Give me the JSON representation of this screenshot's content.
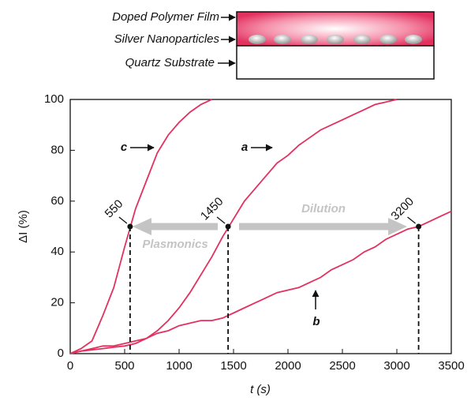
{
  "schematic": {
    "labels": [
      "Doped Polymer Film",
      "Silver Nanoparticles",
      "Quartz Substrate"
    ]
  },
  "chart_data": {
    "type": "line",
    "xlabel": "t (s)",
    "ylabel": "ΔI (%)",
    "x": [
      0,
      100,
      200,
      300,
      400,
      500,
      600,
      700,
      800,
      900,
      1000,
      1100,
      1200,
      1300,
      1400,
      1500,
      1600,
      1700,
      1800,
      1900,
      2000,
      2100,
      2200,
      2300,
      2400,
      2500,
      2600,
      2700,
      2800,
      2900,
      3000,
      3100,
      3200,
      3300,
      3400,
      3500
    ],
    "series": [
      {
        "name": "c",
        "color": "#e2305f",
        "values": [
          0,
          2,
          5,
          15,
          26,
          42,
          57,
          68,
          79,
          86,
          91,
          95,
          98,
          100,
          null,
          null,
          null,
          null,
          null,
          null,
          null,
          null,
          null,
          null,
          null,
          null,
          null,
          null,
          null,
          null,
          null,
          null,
          null,
          null,
          null,
          null
        ]
      },
      {
        "name": "a",
        "color": "#e2305f",
        "values": [
          0,
          1,
          1.5,
          2,
          2.5,
          3,
          4,
          6,
          9,
          13,
          18,
          24,
          31,
          38,
          46,
          53,
          60,
          65,
          70,
          75,
          78,
          82,
          85,
          88,
          90,
          92,
          94,
          96,
          98,
          99,
          100,
          null,
          null,
          null,
          null,
          null
        ]
      },
      {
        "name": "b",
        "color": "#e2305f",
        "values": [
          0,
          1,
          2,
          3,
          3,
          4,
          5,
          6,
          8,
          9,
          11,
          12,
          13,
          13,
          14,
          16,
          18,
          20,
          22,
          24,
          25,
          26,
          28,
          30,
          33,
          35,
          37,
          40,
          42,
          45,
          47,
          49,
          50,
          52,
          54,
          56
        ]
      }
    ],
    "markers": [
      {
        "x": 550,
        "y": 50
      },
      {
        "x": 1450,
        "y": 50
      },
      {
        "x": 3200,
        "y": 50
      }
    ],
    "annotations": [
      "Plasmonics",
      "Dilution"
    ],
    "xlim": [
      0,
      3500
    ],
    "xticks": [
      0,
      500,
      1000,
      1500,
      2000,
      2500,
      3000,
      3500
    ],
    "ylim": [
      0,
      100
    ],
    "yticks": [
      0,
      20,
      40,
      60,
      80,
      100
    ]
  }
}
